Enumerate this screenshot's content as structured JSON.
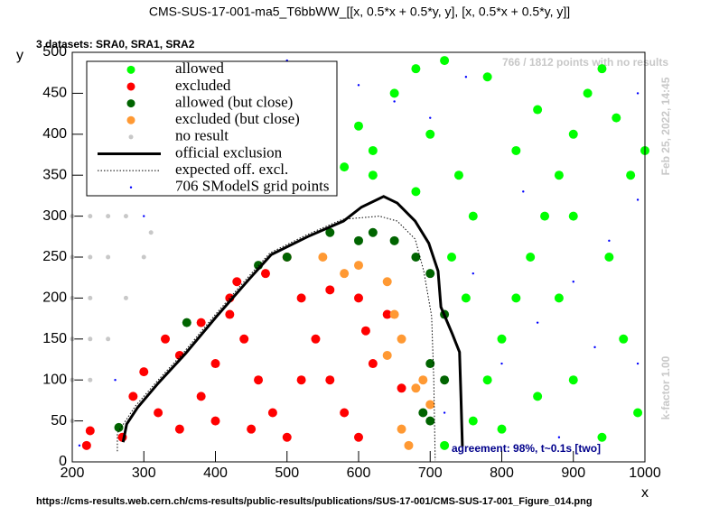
{
  "chart_data": {
    "type": "scatter",
    "title": "CMS-SUS-17-001-ma5_T6bbWW_[[x, 0.5*x + 0.5*y, y], [x, 0.5*x + 0.5*y, y]]",
    "subtitle": "3 datasets: SRA0, SRA1, SRA2",
    "x_label": "x",
    "y_label": "y",
    "annotations": [
      "766 / 1812 points with no results",
      "Feb 25, 2022, 14:45",
      "k-factor 1.00",
      "agreement: 98%, t~0.1s [two]",
      "https://cms-results.web.cern.ch/cms-results/public-results/publications/SUS-17-001/CMS-SUS-17-001_Figure_014.png"
    ],
    "xlim": [
      200,
      1000
    ],
    "ylim": [
      0,
      500
    ],
    "xticks": [
      200,
      300,
      400,
      500,
      600,
      700,
      800,
      900,
      1000
    ],
    "yticks": [
      0,
      50,
      100,
      150,
      200,
      250,
      300,
      350,
      400,
      450,
      500
    ],
    "legend": "top-left",
    "series": [
      {
        "name": "allowed",
        "color": "#00ff00",
        "style": "marker",
        "x": [
          720,
          760,
          780,
          800,
          820,
          840,
          860,
          880,
          900,
          920,
          940,
          960,
          980,
          1000,
          760,
          740,
          700,
          650,
          680,
          720,
          780,
          850,
          900,
          950,
          970,
          990,
          900,
          850,
          800,
          750,
          730,
          680,
          620,
          600,
          580,
          560,
          620,
          940,
          880,
          820
        ],
        "y": [
          20,
          50,
          100,
          150,
          200,
          250,
          300,
          350,
          400,
          450,
          480,
          420,
          350,
          380,
          300,
          350,
          400,
          450,
          480,
          490,
          470,
          430,
          300,
          250,
          150,
          60,
          100,
          80,
          40,
          200,
          250,
          330,
          380,
          410,
          360,
          330,
          350,
          30,
          200,
          380
        ]
      },
      {
        "name": "excluded",
        "color": "#ff0000",
        "style": "marker",
        "x": [
          220,
          225,
          270,
          285,
          300,
          320,
          350,
          380,
          400,
          420,
          440,
          460,
          480,
          500,
          520,
          540,
          560,
          580,
          600,
          620,
          640,
          660,
          500,
          470,
          420,
          400,
          350,
          520,
          560,
          600,
          610,
          450,
          430,
          380,
          330
        ],
        "y": [
          20,
          38,
          30,
          80,
          110,
          60,
          40,
          80,
          120,
          200,
          150,
          100,
          60,
          30,
          200,
          150,
          100,
          60,
          30,
          120,
          180,
          90,
          250,
          230,
          180,
          50,
          130,
          100,
          210,
          200,
          160,
          40,
          220,
          170,
          150
        ]
      },
      {
        "name": "allowed (but close)",
        "color": "#006400",
        "style": "marker",
        "x": [
          360,
          460,
          500,
          560,
          600,
          620,
          650,
          680,
          700,
          720,
          720,
          700,
          700,
          690,
          265
        ],
        "y": [
          170,
          240,
          250,
          280,
          270,
          280,
          270,
          250,
          230,
          180,
          100,
          120,
          50,
          60,
          42
        ]
      },
      {
        "name": "excluded (but close)",
        "color": "#ff9933",
        "style": "marker",
        "x": [
          550,
          580,
          600,
          640,
          650,
          660,
          680,
          700,
          660,
          670,
          640,
          690
        ],
        "y": [
          250,
          230,
          240,
          220,
          180,
          150,
          90,
          70,
          40,
          20,
          130,
          100
        ]
      },
      {
        "name": "no result",
        "color": "#c8c8c8",
        "style": "small",
        "x": [
          200,
          225,
          250,
          275,
          200,
          225,
          250,
          200,
          225,
          200,
          225,
          250,
          200,
          225,
          200,
          300,
          275,
          310
        ],
        "y": [
          300,
          300,
          300,
          300,
          250,
          250,
          250,
          200,
          200,
          150,
          150,
          150,
          100,
          100,
          50,
          250,
          200,
          280
        ]
      },
      {
        "name": "official exclusion",
        "color": "#000000",
        "style": "line",
        "x": [
          271,
          276,
          291,
          320,
          358,
          402,
          446,
          478,
          529,
          579,
          604,
          635,
          654,
          679,
          698,
          711,
          715,
          731,
          741,
          743,
          745
        ],
        "y": [
          24,
          46,
          66,
          96,
          132,
          178,
          222,
          253,
          275,
          294,
          311,
          324,
          316,
          294,
          267,
          233,
          189,
          156,
          134,
          79,
          19
        ]
      },
      {
        "name": "expected off. excl.",
        "color": "#000000",
        "style": "dotted",
        "x": [
          263,
          263,
          288,
          318,
          356,
          400,
          444,
          476,
          527,
          577,
          629,
          654,
          679,
          691,
          702,
          705,
          707
        ],
        "y": [
          13,
          35,
          68,
          98,
          134,
          180,
          224,
          255,
          277,
          296,
          300,
          294,
          272,
          233,
          178,
          101,
          2
        ]
      },
      {
        "name": "706 SModelS grid points",
        "color": "#0000ff",
        "style": "dot",
        "x": [
          210,
          260,
          300,
          350,
          400,
          450,
          500,
          550,
          600,
          650,
          700,
          750,
          800,
          850,
          900,
          950,
          990,
          990,
          990,
          720,
          760,
          830,
          880,
          930
        ],
        "y": [
          20,
          100,
          300,
          350,
          400,
          450,
          490,
          480,
          460,
          440,
          420,
          470,
          120,
          170,
          220,
          270,
          320,
          120,
          450,
          60,
          230,
          330,
          30,
          140
        ]
      }
    ]
  }
}
